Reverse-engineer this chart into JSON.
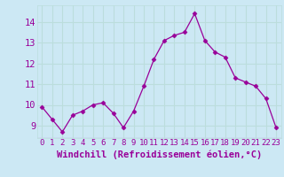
{
  "x": [
    0,
    1,
    2,
    3,
    4,
    5,
    6,
    7,
    8,
    9,
    10,
    11,
    12,
    13,
    14,
    15,
    16,
    17,
    18,
    19,
    20,
    21,
    22,
    23
  ],
  "y": [
    9.9,
    9.3,
    8.7,
    9.5,
    9.7,
    10.0,
    10.1,
    9.6,
    8.9,
    9.7,
    10.9,
    12.2,
    13.1,
    13.35,
    13.5,
    14.4,
    13.1,
    12.55,
    12.3,
    11.3,
    11.1,
    10.9,
    10.3,
    8.9
  ],
  "line_color": "#990099",
  "marker": "D",
  "marker_size": 2.5,
  "bg_color": "#cce8f4",
  "grid_color": "#bbdddd",
  "xlabel": "Windchill (Refroidissement éolien,°C)",
  "xlabel_fontsize": 7.5,
  "ylabel_ticks": [
    9,
    10,
    11,
    12,
    13,
    14
  ],
  "xlim": [
    -0.5,
    23.5
  ],
  "ylim": [
    8.4,
    14.8
  ],
  "xtick_labels": [
    "0",
    "1",
    "2",
    "3",
    "4",
    "5",
    "6",
    "7",
    "8",
    "9",
    "10",
    "11",
    "12",
    "13",
    "14",
    "15",
    "16",
    "17",
    "18",
    "19",
    "20",
    "21",
    "22",
    "23"
  ],
  "tick_color": "#990099",
  "tick_fontsize": 6.5,
  "ytick_fontsize": 7.5
}
